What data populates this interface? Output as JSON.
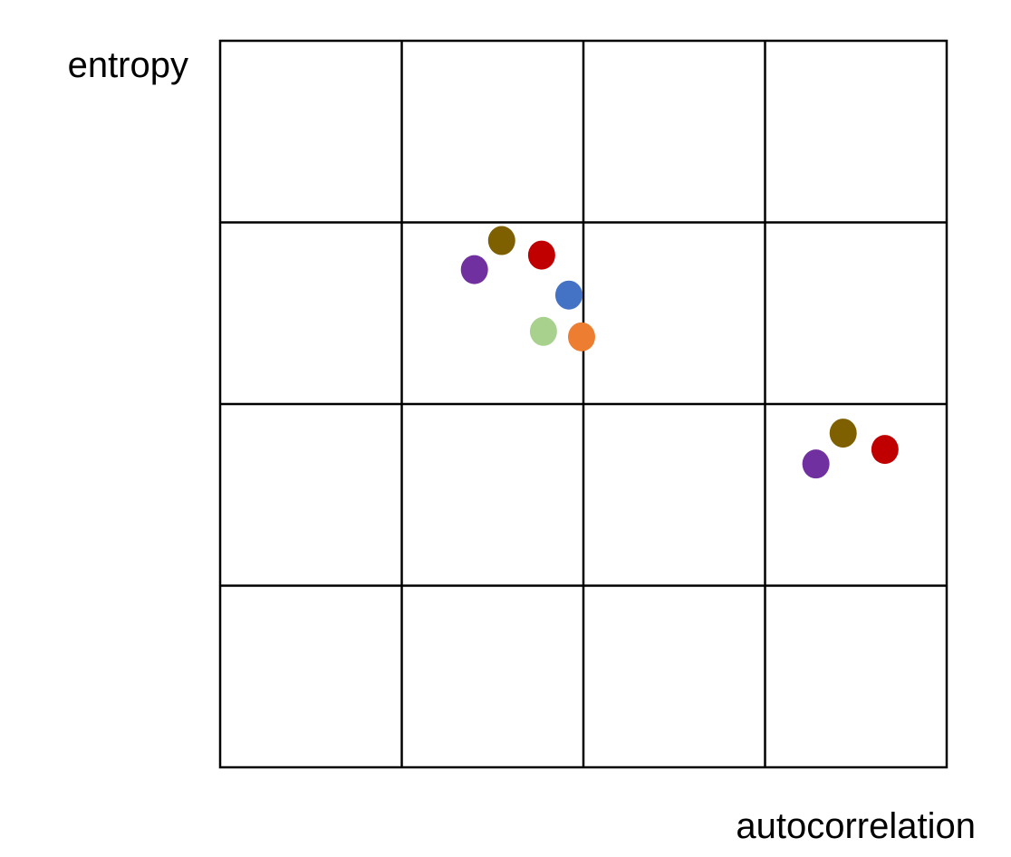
{
  "chart_data": {
    "type": "scatter",
    "title": "",
    "xlabel": "autocorrelation",
    "ylabel": "entropy",
    "xlim": [
      0,
      4
    ],
    "ylim": [
      0,
      4
    ],
    "grid": true,
    "grid_divisions": 4,
    "points": [
      {
        "x": 1.55,
        "y": 2.9,
        "color": "#7f6000"
      },
      {
        "x": 1.77,
        "y": 2.82,
        "color": "#c00000"
      },
      {
        "x": 1.4,
        "y": 2.74,
        "color": "#7030a0"
      },
      {
        "x": 1.92,
        "y": 2.6,
        "color": "#4472c4"
      },
      {
        "x": 1.78,
        "y": 2.4,
        "color": "#a9d18e"
      },
      {
        "x": 1.99,
        "y": 2.37,
        "color": "#ed7d31"
      },
      {
        "x": 3.43,
        "y": 1.84,
        "color": "#7f6000"
      },
      {
        "x": 3.66,
        "y": 1.75,
        "color": "#c00000"
      },
      {
        "x": 3.28,
        "y": 1.67,
        "color": "#7030a0"
      }
    ]
  }
}
